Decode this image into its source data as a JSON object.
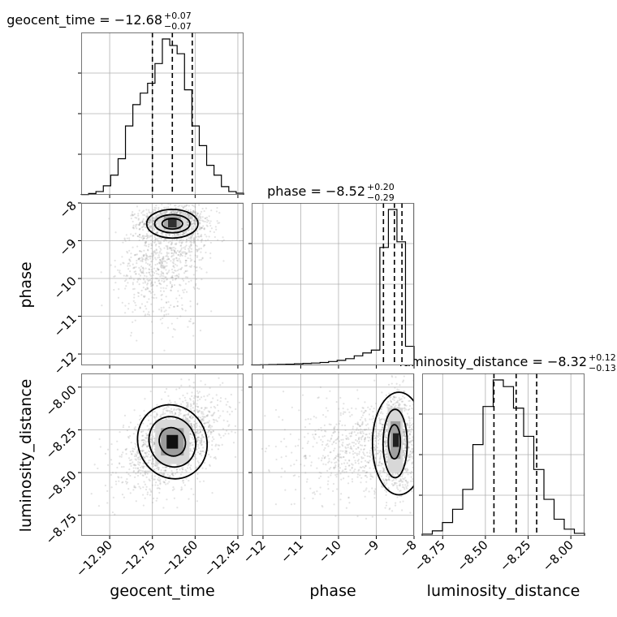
{
  "chart_data": {
    "type": "corner",
    "parameters": [
      {
        "name": "geocent_time",
        "median": -12.68,
        "plus": 0.07,
        "minus": 0.07,
        "range": [
          -13.0,
          -12.43
        ],
        "quantiles": [
          -12.75,
          -12.68,
          -12.61
        ]
      },
      {
        "name": "phase",
        "median": -8.52,
        "plus": 0.2,
        "minus": 0.29,
        "range": [
          -12.3,
          -8.0
        ],
        "quantiles": [
          -8.81,
          -8.52,
          -8.32
        ]
      },
      {
        "name": "luminosity_distance",
        "median": -8.32,
        "plus": 0.12,
        "minus": 0.13,
        "range": [
          -8.87,
          -7.92
        ],
        "quantiles": [
          -8.45,
          -8.32,
          -8.2
        ]
      }
    ],
    "titles": [
      {
        "main": "geocent_time = −12.68",
        "sup": "+0.07",
        "sub": "−0.07"
      },
      {
        "main": "phase = −8.52",
        "sup": "+0.20",
        "sub": "−0.29"
      },
      {
        "main": "luminosity_distance = −8.32",
        "sup": "+0.12",
        "sub": "−0.13"
      }
    ],
    "axis_labels": {
      "x": [
        "geocent_time",
        "phase",
        "luminosity_distance"
      ],
      "y": [
        "phase",
        "luminosity_distance"
      ]
    },
    "ticks": {
      "geocent_time": {
        "values": [
          -12.9,
          -12.75,
          -12.6,
          -12.45
        ],
        "labels": [
          "−12.90",
          "−12.75",
          "−12.60",
          "−12.45"
        ]
      },
      "phase": {
        "values": [
          -12,
          -11,
          -10,
          -9,
          -8
        ],
        "labels": [
          "−12",
          "−11",
          "−10",
          "−9",
          "−8"
        ]
      },
      "luminosity_distance": {
        "values": [
          -8.75,
          -8.5,
          -8.25,
          -8.0
        ],
        "labels": [
          "−8.75",
          "−8.50",
          "−8.25",
          "−8.00"
        ]
      }
    },
    "histograms": {
      "geocent_time": [
        0.2,
        0.8,
        2.0,
        5.5,
        12,
        22,
        42,
        55,
        62,
        68,
        80,
        95,
        91,
        86,
        64,
        42,
        30,
        18,
        12,
        5,
        2,
        1
      ],
      "phase": [
        0.2,
        0.3,
        0.4,
        0.5,
        0.6,
        0.8,
        1.0,
        1.2,
        1.5,
        2,
        2.6,
        3.5,
        5,
        6.5,
        8,
        62,
        82,
        65,
        10
      ],
      "luminosity_distance": [
        1,
        3,
        8,
        16,
        28,
        55,
        78,
        94,
        90,
        77,
        60,
        40,
        22,
        10,
        4,
        1.5
      ]
    },
    "grid": true,
    "quantile_line_style": "dashed"
  }
}
